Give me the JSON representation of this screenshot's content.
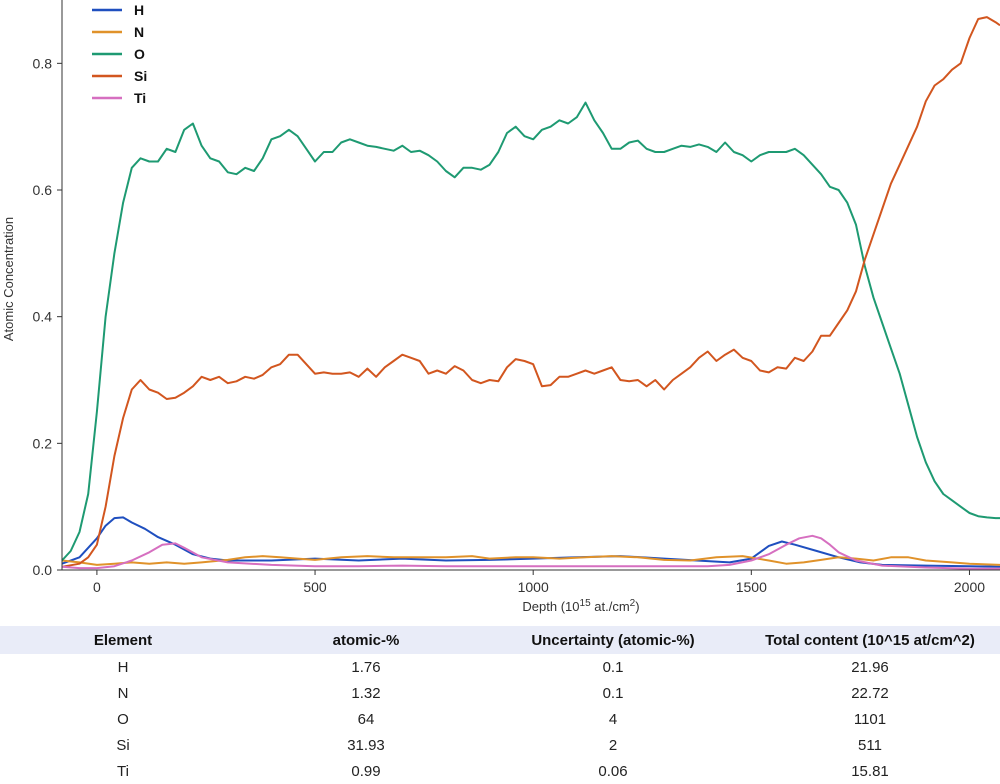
{
  "chart_data": {
    "type": "line",
    "xlabel": "Depth (10",
    "xlabel_sup": "15",
    "xlabel_suffix": " at./cm",
    "xlabel_sup2": "2",
    "xlabel_end": ")",
    "ylabel": "Atomic Concentration",
    "xlim": [
      -80,
      2070
    ],
    "ylim": [
      0,
      0.9
    ],
    "xticks": [
      0,
      500,
      1000,
      1500,
      2000
    ],
    "yticks": [
      0.0,
      0.2,
      0.4,
      0.6,
      0.8
    ],
    "ytick_labels": [
      "0.0",
      "0.2",
      "0.4",
      "0.6",
      "0.8"
    ],
    "legend_position": "top-left",
    "series": [
      {
        "name": "H",
        "color": "#1f4fbf",
        "x": [
          -80,
          -40,
          0,
          20,
          40,
          60,
          80,
          110,
          140,
          180,
          220,
          260,
          300,
          400,
          500,
          600,
          700,
          800,
          900,
          1000,
          1100,
          1200,
          1300,
          1400,
          1450,
          1500,
          1540,
          1570,
          1600,
          1650,
          1700,
          1750,
          1800,
          1900,
          2000,
          2070
        ],
        "y": [
          0.01,
          0.02,
          0.05,
          0.07,
          0.082,
          0.083,
          0.075,
          0.065,
          0.052,
          0.04,
          0.025,
          0.018,
          0.015,
          0.015,
          0.018,
          0.015,
          0.018,
          0.015,
          0.016,
          0.018,
          0.02,
          0.022,
          0.018,
          0.014,
          0.012,
          0.018,
          0.038,
          0.045,
          0.04,
          0.03,
          0.02,
          0.012,
          0.008,
          0.007,
          0.006,
          0.005
        ]
      },
      {
        "name": "N",
        "color": "#e0922a",
        "x": [
          -80,
          -40,
          0,
          40,
          80,
          120,
          160,
          200,
          240,
          300,
          340,
          380,
          420,
          460,
          500,
          560,
          620,
          680,
          740,
          800,
          860,
          900,
          960,
          1000,
          1060,
          1120,
          1180,
          1240,
          1300,
          1360,
          1420,
          1480,
          1540,
          1580,
          1620,
          1660,
          1700,
          1740,
          1780,
          1820,
          1860,
          1900,
          1960,
          2000,
          2070
        ],
        "y": [
          0.015,
          0.012,
          0.008,
          0.01,
          0.012,
          0.01,
          0.012,
          0.01,
          0.012,
          0.016,
          0.02,
          0.022,
          0.02,
          0.018,
          0.016,
          0.02,
          0.022,
          0.02,
          0.02,
          0.02,
          0.022,
          0.018,
          0.02,
          0.02,
          0.018,
          0.02,
          0.022,
          0.02,
          0.016,
          0.015,
          0.02,
          0.022,
          0.015,
          0.01,
          0.012,
          0.016,
          0.02,
          0.018,
          0.015,
          0.02,
          0.02,
          0.015,
          0.012,
          0.01,
          0.008
        ]
      },
      {
        "name": "O",
        "color": "#1e9a72",
        "x": [
          -80,
          -60,
          -40,
          -20,
          0,
          20,
          40,
          60,
          80,
          100,
          120,
          140,
          160,
          180,
          200,
          220,
          240,
          260,
          280,
          300,
          320,
          340,
          360,
          380,
          400,
          420,
          440,
          460,
          480,
          500,
          520,
          540,
          560,
          580,
          600,
          620,
          640,
          660,
          680,
          700,
          720,
          740,
          760,
          780,
          800,
          820,
          840,
          860,
          880,
          900,
          920,
          940,
          960,
          980,
          1000,
          1020,
          1040,
          1060,
          1080,
          1100,
          1120,
          1140,
          1160,
          1180,
          1200,
          1220,
          1240,
          1260,
          1280,
          1300,
          1320,
          1340,
          1360,
          1380,
          1400,
          1420,
          1440,
          1460,
          1480,
          1500,
          1520,
          1540,
          1560,
          1580,
          1600,
          1620,
          1640,
          1660,
          1680,
          1700,
          1720,
          1740,
          1760,
          1780,
          1800,
          1820,
          1840,
          1860,
          1880,
          1900,
          1920,
          1940,
          1960,
          1980,
          2000,
          2020,
          2040,
          2060,
          2070
        ],
        "y": [
          0.015,
          0.03,
          0.06,
          0.12,
          0.25,
          0.4,
          0.5,
          0.58,
          0.635,
          0.65,
          0.645,
          0.645,
          0.665,
          0.66,
          0.695,
          0.705,
          0.67,
          0.65,
          0.645,
          0.628,
          0.625,
          0.635,
          0.63,
          0.65,
          0.68,
          0.685,
          0.695,
          0.685,
          0.665,
          0.645,
          0.66,
          0.66,
          0.675,
          0.68,
          0.675,
          0.67,
          0.668,
          0.665,
          0.662,
          0.67,
          0.66,
          0.662,
          0.655,
          0.645,
          0.63,
          0.62,
          0.635,
          0.635,
          0.632,
          0.64,
          0.66,
          0.69,
          0.7,
          0.685,
          0.68,
          0.695,
          0.7,
          0.71,
          0.705,
          0.715,
          0.738,
          0.71,
          0.69,
          0.665,
          0.665,
          0.675,
          0.678,
          0.665,
          0.66,
          0.66,
          0.665,
          0.67,
          0.668,
          0.672,
          0.668,
          0.66,
          0.675,
          0.66,
          0.655,
          0.645,
          0.655,
          0.66,
          0.66,
          0.66,
          0.665,
          0.655,
          0.64,
          0.625,
          0.605,
          0.6,
          0.58,
          0.545,
          0.48,
          0.43,
          0.39,
          0.35,
          0.31,
          0.26,
          0.21,
          0.17,
          0.14,
          0.12,
          0.11,
          0.1,
          0.09,
          0.085,
          0.083,
          0.082,
          0.082
        ]
      },
      {
        "name": "Si",
        "color": "#d2561f",
        "x": [
          -80,
          -40,
          -20,
          0,
          20,
          40,
          60,
          80,
          100,
          120,
          140,
          160,
          180,
          200,
          220,
          240,
          260,
          280,
          300,
          320,
          340,
          360,
          380,
          400,
          420,
          440,
          460,
          480,
          500,
          520,
          540,
          560,
          580,
          600,
          620,
          640,
          660,
          680,
          700,
          720,
          740,
          760,
          780,
          800,
          820,
          840,
          860,
          880,
          900,
          920,
          940,
          960,
          980,
          1000,
          1020,
          1040,
          1060,
          1080,
          1100,
          1120,
          1140,
          1160,
          1180,
          1200,
          1220,
          1240,
          1260,
          1280,
          1300,
          1320,
          1340,
          1360,
          1380,
          1400,
          1420,
          1440,
          1460,
          1480,
          1500,
          1520,
          1540,
          1560,
          1580,
          1600,
          1620,
          1640,
          1660,
          1680,
          1700,
          1720,
          1740,
          1760,
          1780,
          1800,
          1820,
          1840,
          1860,
          1880,
          1900,
          1920,
          1940,
          1960,
          1980,
          2000,
          2020,
          2040,
          2060,
          2070
        ],
        "y": [
          0.005,
          0.01,
          0.02,
          0.04,
          0.1,
          0.18,
          0.24,
          0.285,
          0.3,
          0.285,
          0.28,
          0.27,
          0.272,
          0.28,
          0.29,
          0.305,
          0.3,
          0.305,
          0.295,
          0.298,
          0.305,
          0.302,
          0.308,
          0.32,
          0.325,
          0.34,
          0.34,
          0.325,
          0.31,
          0.312,
          0.31,
          0.31,
          0.312,
          0.305,
          0.318,
          0.305,
          0.32,
          0.33,
          0.34,
          0.335,
          0.33,
          0.31,
          0.315,
          0.31,
          0.322,
          0.315,
          0.3,
          0.295,
          0.3,
          0.298,
          0.32,
          0.333,
          0.33,
          0.325,
          0.29,
          0.292,
          0.305,
          0.305,
          0.31,
          0.315,
          0.31,
          0.315,
          0.32,
          0.3,
          0.298,
          0.3,
          0.29,
          0.3,
          0.285,
          0.3,
          0.31,
          0.32,
          0.335,
          0.345,
          0.33,
          0.34,
          0.348,
          0.335,
          0.33,
          0.315,
          0.312,
          0.32,
          0.318,
          0.335,
          0.33,
          0.345,
          0.37,
          0.37,
          0.39,
          0.41,
          0.44,
          0.49,
          0.53,
          0.57,
          0.61,
          0.64,
          0.67,
          0.7,
          0.74,
          0.765,
          0.775,
          0.79,
          0.8,
          0.84,
          0.87,
          0.873,
          0.865,
          0.86
        ]
      },
      {
        "name": "Ti",
        "color": "#d66fc0",
        "x": [
          -80,
          -40,
          0,
          40,
          80,
          120,
          150,
          180,
          200,
          240,
          300,
          400,
          500,
          600,
          700,
          800,
          900,
          1000,
          1100,
          1200,
          1300,
          1400,
          1450,
          1500,
          1540,
          1580,
          1610,
          1640,
          1660,
          1680,
          1700,
          1740,
          1800,
          1900,
          2000,
          2070
        ],
        "y": [
          0.005,
          0.003,
          0.003,
          0.006,
          0.015,
          0.028,
          0.04,
          0.042,
          0.035,
          0.02,
          0.012,
          0.008,
          0.006,
          0.006,
          0.007,
          0.006,
          0.006,
          0.006,
          0.006,
          0.006,
          0.006,
          0.006,
          0.008,
          0.015,
          0.025,
          0.04,
          0.05,
          0.054,
          0.05,
          0.04,
          0.028,
          0.015,
          0.007,
          0.004,
          0.002,
          0.002
        ]
      }
    ]
  },
  "table": {
    "headers": [
      "Element",
      "atomic-%",
      "Uncertainty (atomic-%)",
      "Total content (10^15 at/cm^2)"
    ],
    "rows": [
      [
        "H",
        "1.76",
        "0.1",
        "21.96"
      ],
      [
        "N",
        "1.32",
        "0.1",
        "22.72"
      ],
      [
        "O",
        "64",
        "4",
        "1101"
      ],
      [
        "Si",
        "31.93",
        "2",
        "511"
      ],
      [
        "Ti",
        "0.99",
        "0.06",
        "15.81"
      ]
    ]
  }
}
